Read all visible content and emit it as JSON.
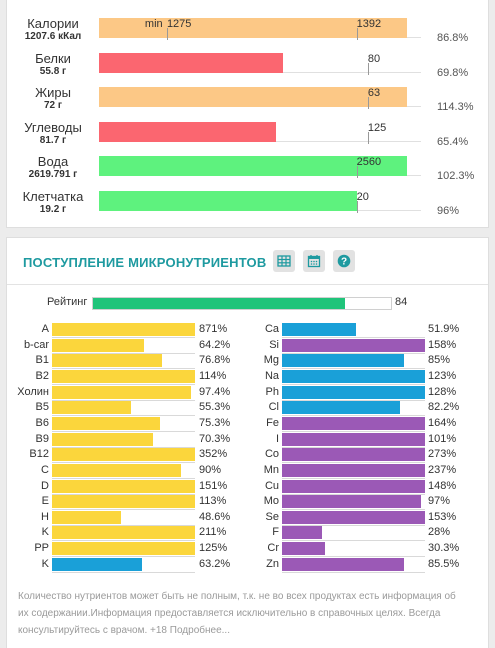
{
  "macros": [
    {
      "name": "Калории",
      "sub": "1207.6 кКал",
      "fill": 0.956,
      "color": "#fcc886",
      "pct": "86.8%",
      "norm_labels": [
        {
          "text": "min",
          "pos": 0.155
        },
        {
          "text": "1275",
          "pos": 0.211
        }
      ],
      "ticks": [
        0.211,
        0.8
      ],
      "norm2": {
        "text": "1392",
        "pos": 0.8
      }
    },
    {
      "name": "Белки",
      "sub": "55.8 г",
      "fill": 0.57,
      "color": "#fb6670",
      "pct": "69.8%",
      "ticks": [
        0.835
      ],
      "norm2": {
        "text": "80",
        "pos": 0.835
      }
    },
    {
      "name": "Жиры",
      "sub": "72 г",
      "fill": 0.956,
      "color": "#fcc886",
      "pct": "114.3%",
      "ticks": [
        0.835
      ],
      "norm2": {
        "text": "63",
        "pos": 0.835
      }
    },
    {
      "name": "Углеводы",
      "sub": "81.7 г",
      "fill": 0.55,
      "color": "#fb6670",
      "pct": "65.4%",
      "ticks": [
        0.835
      ],
      "norm2": {
        "text": "125",
        "pos": 0.835
      }
    },
    {
      "name": "Вода",
      "sub": "2619.791 г",
      "fill": 0.956,
      "color": "#5ef27e",
      "pct": "102.3%",
      "ticks": [
        0.8
      ],
      "norm2": {
        "text": "2560",
        "pos": 0.8
      }
    },
    {
      "name": "Клетчатка",
      "sub": "19.2 г",
      "fill": 0.8,
      "color": "#5ef27e",
      "pct": "96%",
      "ticks": [
        0.8
      ],
      "norm2": {
        "text": "20",
        "pos": 0.8
      }
    }
  ],
  "micro": {
    "title": "ПОСТУПЛЕНИЕ МИКРОНУТРИЕНТОВ",
    "buttons": [
      "table-icon",
      "calendar-icon",
      "help-icon"
    ],
    "rating": {
      "label": "Рейтинг",
      "value": "84",
      "fraction": 0.84,
      "color": "#20c47a"
    },
    "vitamins": [
      {
        "name": "A",
        "pct": "871%",
        "fill": 1.0,
        "color": "#fbd63c"
      },
      {
        "name": "b-car",
        "pct": "64.2%",
        "fill": 0.642,
        "color": "#fbd63c"
      },
      {
        "name": "B1",
        "pct": "76.8%",
        "fill": 0.768,
        "color": "#fbd63c"
      },
      {
        "name": "B2",
        "pct": "114%",
        "fill": 1.0,
        "color": "#fbd63c"
      },
      {
        "name": "Холин",
        "pct": "97.4%",
        "fill": 0.974,
        "color": "#fbd63c"
      },
      {
        "name": "B5",
        "pct": "55.3%",
        "fill": 0.553,
        "color": "#fbd63c"
      },
      {
        "name": "B6",
        "pct": "75.3%",
        "fill": 0.753,
        "color": "#fbd63c"
      },
      {
        "name": "B9",
        "pct": "70.3%",
        "fill": 0.703,
        "color": "#fbd63c"
      },
      {
        "name": "B12",
        "pct": "352%",
        "fill": 1.0,
        "color": "#fbd63c"
      },
      {
        "name": "C",
        "pct": "90%",
        "fill": 0.9,
        "color": "#fbd63c"
      },
      {
        "name": "D",
        "pct": "151%",
        "fill": 1.0,
        "color": "#fbd63c"
      },
      {
        "name": "E",
        "pct": "113%",
        "fill": 1.0,
        "color": "#fbd63c"
      },
      {
        "name": "H",
        "pct": "48.6%",
        "fill": 0.486,
        "color": "#fbd63c"
      },
      {
        "name": "K",
        "pct": "211%",
        "fill": 1.0,
        "color": "#fbd63c"
      },
      {
        "name": "PP",
        "pct": "125%",
        "fill": 1.0,
        "color": "#fbd63c"
      },
      {
        "name": "K",
        "pct": "63.2%",
        "fill": 0.632,
        "color": "#1aa0d8"
      }
    ],
    "minerals": [
      {
        "name": "Ca",
        "pct": "51.9%",
        "fill": 0.519,
        "color": "#1aa0d8"
      },
      {
        "name": "Si",
        "pct": "158%",
        "fill": 1.0,
        "color": "#9b59b6"
      },
      {
        "name": "Mg",
        "pct": "85%",
        "fill": 0.85,
        "color": "#1aa0d8"
      },
      {
        "name": "Na",
        "pct": "123%",
        "fill": 1.0,
        "color": "#1aa0d8"
      },
      {
        "name": "Ph",
        "pct": "128%",
        "fill": 1.0,
        "color": "#1aa0d8"
      },
      {
        "name": "Cl",
        "pct": "82.2%",
        "fill": 0.822,
        "color": "#1aa0d8"
      },
      {
        "name": "Fe",
        "pct": "164%",
        "fill": 1.0,
        "color": "#9b59b6"
      },
      {
        "name": "I",
        "pct": "101%",
        "fill": 1.0,
        "color": "#9b59b6"
      },
      {
        "name": "Co",
        "pct": "273%",
        "fill": 1.0,
        "color": "#9b59b6"
      },
      {
        "name": "Mn",
        "pct": "237%",
        "fill": 1.0,
        "color": "#9b59b6"
      },
      {
        "name": "Cu",
        "pct": "148%",
        "fill": 1.0,
        "color": "#9b59b6"
      },
      {
        "name": "Mo",
        "pct": "97%",
        "fill": 0.97,
        "color": "#9b59b6"
      },
      {
        "name": "Se",
        "pct": "153%",
        "fill": 1.0,
        "color": "#9b59b6"
      },
      {
        "name": "F",
        "pct": "28%",
        "fill": 0.28,
        "color": "#9b59b6"
      },
      {
        "name": "Cr",
        "pct": "30.3%",
        "fill": 0.303,
        "color": "#9b59b6"
      },
      {
        "name": "Zn",
        "pct": "85.5%",
        "fill": 0.855,
        "color": "#9b59b6"
      }
    ],
    "disclaimer": "Количество нутриентов может быть не полным, т.к. не во всех продуктах есть информация об их содержании.Информация предоставляется исключительно в справочных целях. Всегда консультируйтесь с врачом. +18 Подробнее..."
  }
}
